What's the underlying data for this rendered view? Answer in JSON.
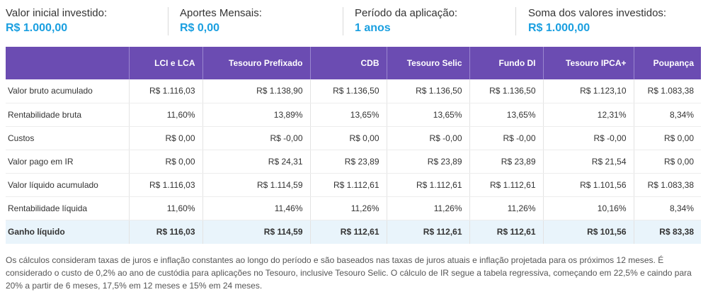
{
  "summary": [
    {
      "label": "Valor inicial investido:",
      "value": "R$ 1.000,00"
    },
    {
      "label": "Aportes Mensais:",
      "value": "R$ 0,00"
    },
    {
      "label": "Período da aplicação:",
      "value": "1 anos"
    },
    {
      "label": "Soma dos valores investidos:",
      "value": "R$ 1.000,00"
    }
  ],
  "table": {
    "headers": [
      "",
      "LCI e LCA",
      "Tesouro Prefixado",
      "CDB",
      "Tesouro Selic",
      "Fundo DI",
      "Tesouro IPCA+",
      "Poupança"
    ],
    "rows": [
      {
        "label": "Valor bruto acumulado",
        "values": [
          "R$ 1.116,03",
          "R$ 1.138,90",
          "R$ 1.136,50",
          "R$ 1.136,50",
          "R$ 1.136,50",
          "R$ 1.123,10",
          "R$ 1.083,38"
        ]
      },
      {
        "label": "Rentabilidade bruta",
        "values": [
          "11,60%",
          "13,89%",
          "13,65%",
          "13,65%",
          "13,65%",
          "12,31%",
          "8,34%"
        ]
      },
      {
        "label": "Custos",
        "values": [
          "R$ 0,00",
          "R$ -0,00",
          "R$ 0,00",
          "R$ -0,00",
          "R$ -0,00",
          "R$ -0,00",
          "R$ 0,00"
        ]
      },
      {
        "label": "Valor pago em IR",
        "values": [
          "R$ 0,00",
          "R$ 24,31",
          "R$ 23,89",
          "R$ 23,89",
          "R$ 23,89",
          "R$ 21,54",
          "R$ 0,00"
        ]
      },
      {
        "label": "Valor líquido acumulado",
        "values": [
          "R$ 1.116,03",
          "R$ 1.114,59",
          "R$ 1.112,61",
          "R$ 1.112,61",
          "R$ 1.112,61",
          "R$ 1.101,56",
          "R$ 1.083,38"
        ]
      },
      {
        "label": "Rentabilidade líquida",
        "values": [
          "11,60%",
          "11,46%",
          "11,26%",
          "11,26%",
          "11,26%",
          "10,16%",
          "8,34%"
        ]
      },
      {
        "label": "Ganho líquido",
        "values": [
          "R$ 116,03",
          "R$ 114,59",
          "R$ 112,61",
          "R$ 112,61",
          "R$ 112,61",
          "R$ 101,56",
          "R$ 83,38"
        ]
      }
    ]
  },
  "footnote": "Os cálculos consideram taxas de juros e inflação constantes ao longo do período e são baseados nas taxas de juros atuais e inflação projetada para os próximos 12 meses. É considerado o custo de 0,2% ao ano de custódia para aplicações no Tesouro, inclusive Tesouro Selic. O cálculo de IR segue a tabela regressiva, começando em 22,5% e caindo para 20% a partir de 6 meses, 17,5% em 12 meses e 15% em 24 meses.",
  "colors": {
    "header_bg": "#6b4cb2",
    "accent": "#1a9fe0",
    "total_row_bg": "#e9f4fb"
  }
}
